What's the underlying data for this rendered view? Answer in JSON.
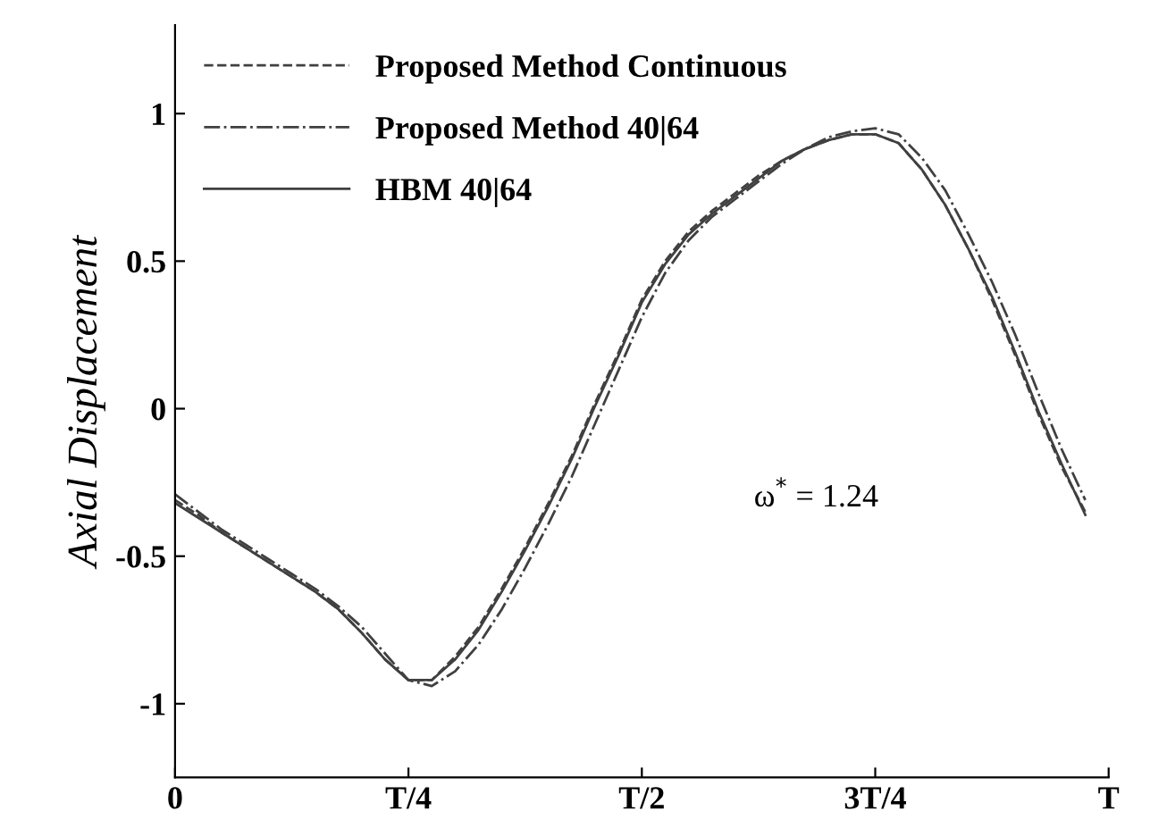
{
  "chart_data": {
    "type": "line",
    "ylabel": "Axial Displacement",
    "categories": [
      "0",
      null,
      null,
      null,
      null,
      null,
      null,
      null,
      null,
      null,
      "T/4",
      null,
      null,
      null,
      null,
      null,
      null,
      null,
      null,
      null,
      "T/2",
      null,
      null,
      null,
      null,
      null,
      null,
      null,
      null,
      null,
      "3T/4",
      null,
      null,
      null,
      null,
      null,
      null,
      null,
      null,
      null,
      "T"
    ],
    "series": [
      {
        "name": "Proposed Method Continuous",
        "color": "#404040",
        "line_style": "dashed",
        "values": [
          -0.31,
          -0.36,
          -0.42,
          -0.47,
          -0.52,
          -0.57,
          -0.62,
          -0.68,
          -0.76,
          -0.85,
          -0.92,
          -0.92,
          -0.84,
          -0.74,
          -0.61,
          -0.47,
          -0.32,
          -0.16,
          0.02,
          0.19,
          0.37,
          0.5,
          0.6,
          0.67,
          0.73,
          0.79,
          0.84,
          0.88,
          0.91,
          0.93,
          0.93,
          0.9,
          0.81,
          0.69,
          0.54,
          0.37,
          0.18,
          -0.02,
          -0.2,
          -0.35,
          null
        ]
      },
      {
        "name": "Proposed Method 40|64",
        "color": "#404040",
        "line_style": "dashdot",
        "values": [
          -0.29,
          -0.35,
          -0.41,
          -0.46,
          -0.51,
          -0.56,
          -0.61,
          -0.67,
          -0.74,
          -0.83,
          -0.92,
          -0.94,
          -0.89,
          -0.8,
          -0.68,
          -0.54,
          -0.39,
          -0.23,
          -0.05,
          0.13,
          0.31,
          0.46,
          0.57,
          0.65,
          0.71,
          0.77,
          0.83,
          0.88,
          0.92,
          0.94,
          0.95,
          0.93,
          0.85,
          0.74,
          0.59,
          0.43,
          0.25,
          0.05,
          -0.14,
          -0.31,
          null
        ]
      },
      {
        "name": "HBM 40|64",
        "color": "#404040",
        "line_style": "solid",
        "values": [
          -0.32,
          -0.37,
          -0.42,
          -0.47,
          -0.52,
          -0.57,
          -0.62,
          -0.68,
          -0.76,
          -0.85,
          -0.92,
          -0.92,
          -0.85,
          -0.75,
          -0.62,
          -0.48,
          -0.33,
          -0.17,
          0.01,
          0.18,
          0.36,
          0.49,
          0.59,
          0.66,
          0.72,
          0.78,
          0.84,
          0.88,
          0.91,
          0.93,
          0.93,
          0.9,
          0.81,
          0.69,
          0.54,
          0.38,
          0.19,
          -0.01,
          -0.19,
          -0.36,
          null
        ]
      }
    ],
    "ylim": [
      -1.25,
      1.3
    ],
    "yticks": [
      {
        "value": -1,
        "label": "-1"
      },
      {
        "value": -0.5,
        "label": "-0.5"
      },
      0,
      0.5,
      1
    ],
    "annotations": [
      "ω$^{*}$ = 1.24"
    ],
    "legend": "top left",
    "grid": false
  }
}
